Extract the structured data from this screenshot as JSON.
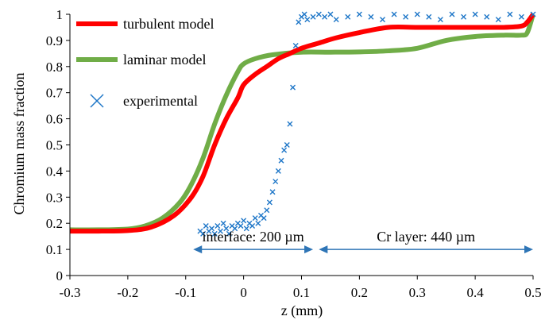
{
  "chart_data": {
    "type": "line",
    "title": "",
    "xlabel": "z (mm)",
    "ylabel": "Chromium mass fraction",
    "xlim": [
      -0.3,
      0.5
    ],
    "ylim": [
      0,
      1
    ],
    "x_ticks": [
      "-0.3",
      "-0.2",
      "-0.1",
      "0",
      "0.1",
      "0.2",
      "0.3",
      "0.4",
      "0.5"
    ],
    "y_ticks": [
      "0",
      "0.1",
      "0.2",
      "0.3",
      "0.4",
      "0.5",
      "0.6",
      "0.7",
      "0.8",
      "0.9",
      "1"
    ],
    "grid": false,
    "legend_position": "top-left",
    "series": [
      {
        "name": "turbulent model",
        "style": "line",
        "color": "#ff0000",
        "x": [
          -0.3,
          -0.25,
          -0.2,
          -0.16,
          -0.12,
          -0.09,
          -0.07,
          -0.05,
          -0.03,
          -0.01,
          0.0,
          0.02,
          0.04,
          0.06,
          0.08,
          0.1,
          0.13,
          0.16,
          0.2,
          0.25,
          0.3,
          0.35,
          0.4,
          0.45,
          0.48,
          0.49,
          0.5
        ],
        "y": [
          0.17,
          0.17,
          0.172,
          0.185,
          0.23,
          0.3,
          0.38,
          0.5,
          0.6,
          0.68,
          0.73,
          0.77,
          0.8,
          0.83,
          0.85,
          0.87,
          0.89,
          0.91,
          0.93,
          0.95,
          0.95,
          0.95,
          0.95,
          0.95,
          0.955,
          0.97,
          1.0
        ]
      },
      {
        "name": "laminar model",
        "style": "line",
        "color": "#70ad47",
        "x": [
          -0.3,
          -0.25,
          -0.2,
          -0.17,
          -0.14,
          -0.11,
          -0.09,
          -0.07,
          -0.05,
          -0.03,
          -0.01,
          0.0,
          0.02,
          0.05,
          0.1,
          0.15,
          0.2,
          0.25,
          0.3,
          0.35,
          0.4,
          0.45,
          0.48,
          0.49,
          0.5
        ],
        "y": [
          0.175,
          0.175,
          0.178,
          0.19,
          0.22,
          0.28,
          0.35,
          0.45,
          0.58,
          0.69,
          0.78,
          0.81,
          0.83,
          0.845,
          0.855,
          0.855,
          0.856,
          0.86,
          0.87,
          0.9,
          0.915,
          0.92,
          0.92,
          0.93,
          1.0
        ]
      },
      {
        "name": "experimental",
        "style": "marker",
        "color": "#1f77c8",
        "x": [
          -0.075,
          -0.07,
          -0.065,
          -0.06,
          -0.055,
          -0.05,
          -0.045,
          -0.04,
          -0.035,
          -0.03,
          -0.025,
          -0.02,
          -0.015,
          -0.01,
          -0.005,
          0.0,
          0.005,
          0.01,
          0.015,
          0.02,
          0.025,
          0.03,
          0.035,
          0.04,
          0.045,
          0.05,
          0.055,
          0.06,
          0.065,
          0.07,
          0.075,
          0.08,
          0.085,
          0.09,
          0.095,
          0.1,
          0.105,
          0.11,
          0.12,
          0.13,
          0.14,
          0.15,
          0.16,
          0.18,
          0.2,
          0.22,
          0.24,
          0.26,
          0.28,
          0.3,
          0.32,
          0.34,
          0.36,
          0.38,
          0.4,
          0.42,
          0.44,
          0.46,
          0.48,
          0.5
        ],
        "y": [
          0.17,
          0.16,
          0.19,
          0.17,
          0.18,
          0.16,
          0.19,
          0.17,
          0.2,
          0.18,
          0.16,
          0.19,
          0.18,
          0.2,
          0.19,
          0.21,
          0.18,
          0.2,
          0.19,
          0.22,
          0.2,
          0.23,
          0.22,
          0.25,
          0.28,
          0.32,
          0.36,
          0.4,
          0.44,
          0.48,
          0.5,
          0.58,
          0.72,
          0.88,
          0.97,
          0.99,
          1.0,
          0.98,
          0.99,
          1.0,
          0.99,
          1.0,
          0.98,
          0.99,
          1.0,
          0.99,
          0.98,
          1.0,
          0.99,
          1.0,
          0.99,
          0.98,
          1.0,
          0.99,
          1.0,
          0.99,
          0.98,
          1.0,
          0.99,
          1.0
        ]
      }
    ],
    "annotations": [
      {
        "text": "interface: 200 µm",
        "x_start": -0.087,
        "x_end": 0.12,
        "y": 0.1,
        "color": "#2e75b6"
      },
      {
        "text": "Cr layer: 440 µm",
        "x_start": 0.13,
        "x_end": 0.5,
        "y": 0.1,
        "color": "#2e75b6"
      }
    ]
  }
}
